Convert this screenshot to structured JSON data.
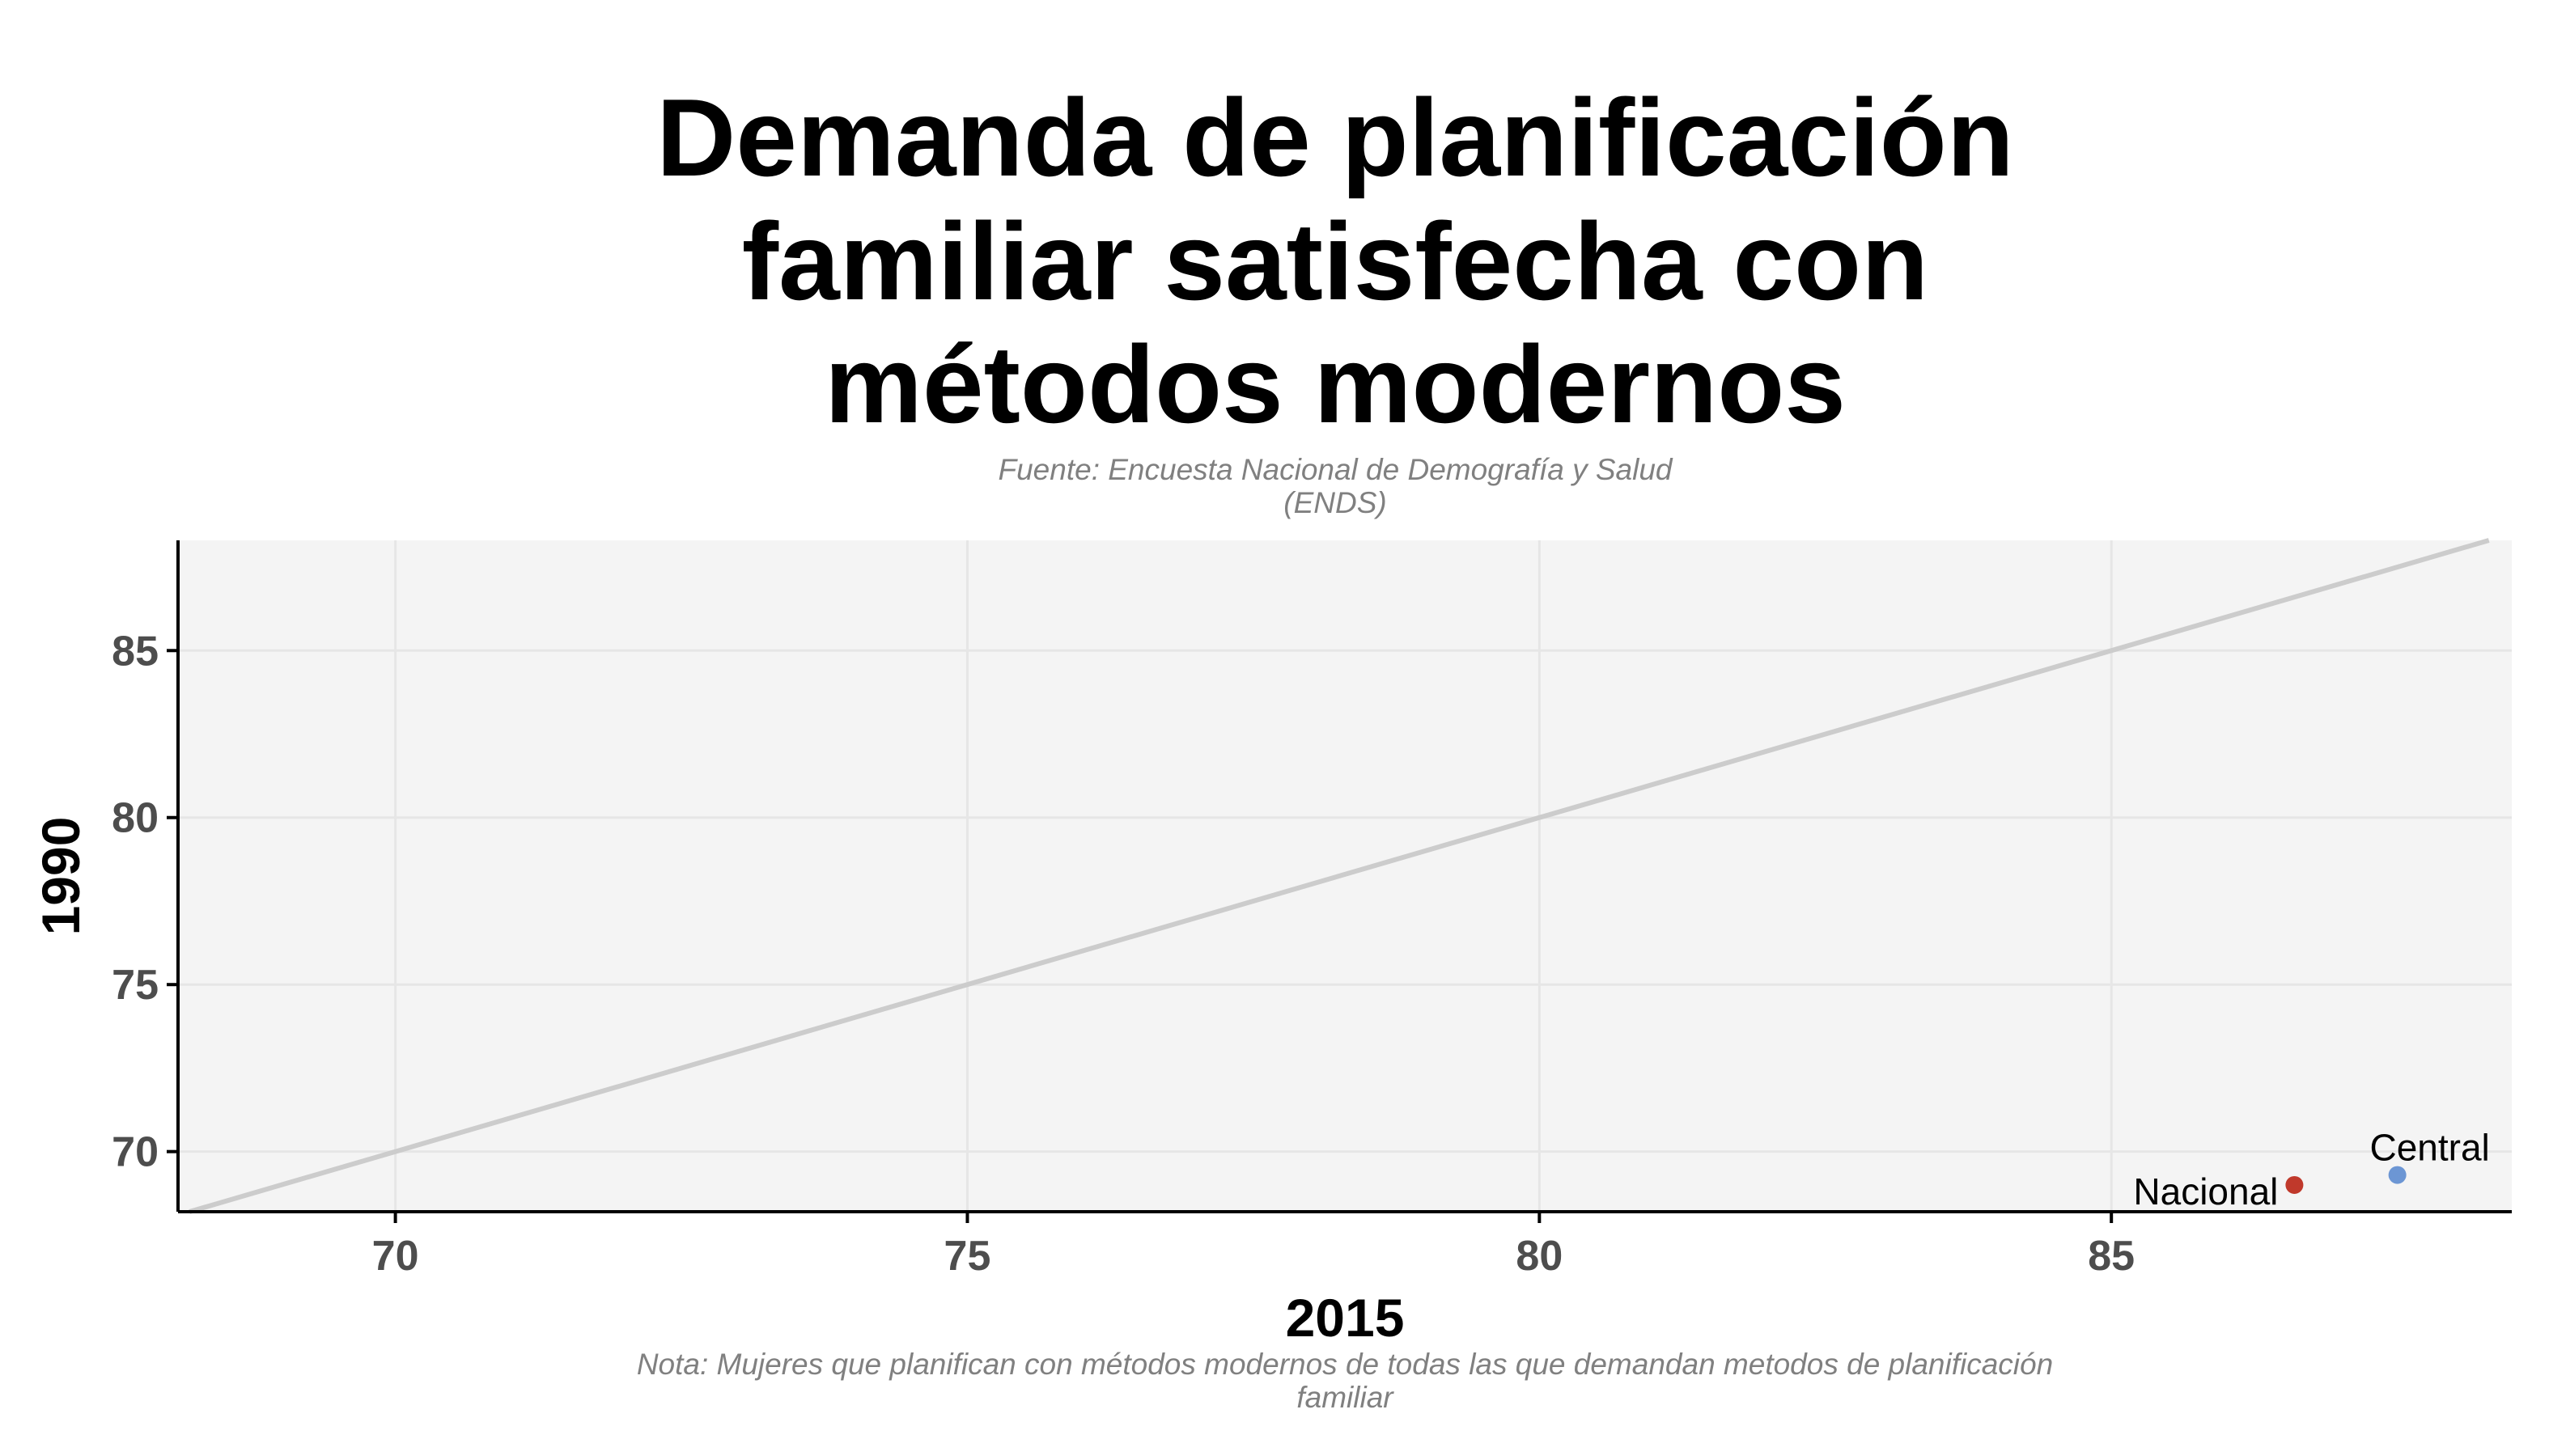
{
  "chart_data": {
    "type": "scatter",
    "title_lines": [
      "Demanda de planificación",
      "familiar satisfecha con",
      "métodos modernos"
    ],
    "subtitle_lines": [
      "Fuente: Encuesta Nacional de Demografía y Salud",
      "(ENDS)"
    ],
    "caption_lines": [
      "Nota: Mujeres que planifican con métodos modernos de todas las que demandan metodos de planificación",
      "familiar"
    ],
    "xlabel": "2015",
    "ylabel": "1990",
    "xlim": [
      68.1,
      88.5
    ],
    "ylim": [
      68.2,
      88.3
    ],
    "xticks": [
      70,
      75,
      80,
      85
    ],
    "yticks": [
      70,
      75,
      80,
      85
    ],
    "reference_line": "y = x",
    "grid": true,
    "points": [
      {
        "label": "Nacional",
        "x": 86.6,
        "y": 69.0,
        "color": "#c0392b"
      },
      {
        "label": "Central",
        "x": 87.5,
        "y": 69.3,
        "color": "#6c96d4"
      }
    ],
    "colors": {
      "panel_background": "#f4f4f4",
      "grid": "#e6e6e6",
      "reference_line": "#cccccc",
      "axis": "#000000"
    }
  }
}
